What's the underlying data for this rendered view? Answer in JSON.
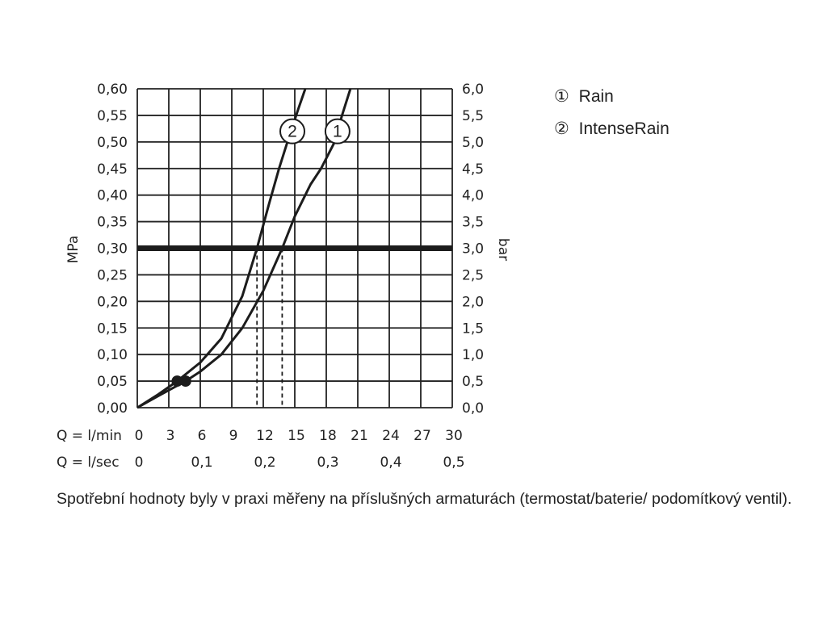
{
  "chart_data": {
    "type": "line",
    "y_left_label": "MPa",
    "y_right_label": "bar",
    "x_row1_prefix": "Q = l/min",
    "x_row2_prefix": "Q = l/sec",
    "x_ticks_lmin": [
      "0",
      "3",
      "6",
      "9",
      "12",
      "15",
      "18",
      "21",
      "24",
      "27",
      "30"
    ],
    "x_ticks_lsec": [
      "0",
      "0,1",
      "0,2",
      "0,3",
      "0,4",
      "0,5"
    ],
    "y_ticks_mpa": [
      "0,00",
      "0,05",
      "0,10",
      "0,15",
      "0,20",
      "0,25",
      "0,30",
      "0,35",
      "0,40",
      "0,45",
      "0,50",
      "0,55",
      "0,60"
    ],
    "y_ticks_bar": [
      "0,0",
      "0,5",
      "1,0",
      "1,5",
      "2,0",
      "2,5",
      "3,0",
      "3,5",
      "4,0",
      "4,5",
      "5,0",
      "5,5",
      "6,0"
    ],
    "xlim": [
      0,
      30
    ],
    "ylim": [
      0,
      0.6
    ],
    "grid": true,
    "reference_pressure": 0.3,
    "series": [
      {
        "id": "1",
        "marker_label": "1",
        "x": [
          0,
          2,
          4.6,
          6,
          8,
          10,
          12,
          13.8,
          15,
          16.5,
          17.5,
          18.8,
          19.5,
          20.3
        ],
        "y": [
          0,
          0.022,
          0.05,
          0.068,
          0.1,
          0.15,
          0.22,
          0.3,
          0.36,
          0.42,
          0.45,
          0.5,
          0.55,
          0.6
        ],
        "operating_point": {
          "x": 4.6,
          "y": 0.05
        },
        "flow_at_reference": 13.8
      },
      {
        "id": "2",
        "marker_label": "2",
        "x": [
          0,
          2,
          3.8,
          6,
          8,
          10,
          11.4,
          12.5,
          13.5,
          14.3,
          15.3,
          16
        ],
        "y": [
          0,
          0.025,
          0.05,
          0.085,
          0.13,
          0.21,
          0.3,
          0.38,
          0.45,
          0.5,
          0.56,
          0.6
        ],
        "operating_point": {
          "x": 3.8,
          "y": 0.05
        },
        "flow_at_reference": 11.4
      }
    ]
  },
  "legend": [
    {
      "symbol": "①",
      "label": "Rain"
    },
    {
      "symbol": "②",
      "label": "IntenseRain"
    }
  ],
  "caption": "Spotřební hodnoty byly v praxi měřeny na příslušných armaturách (termostat/baterie/ podomítkový ventil)."
}
